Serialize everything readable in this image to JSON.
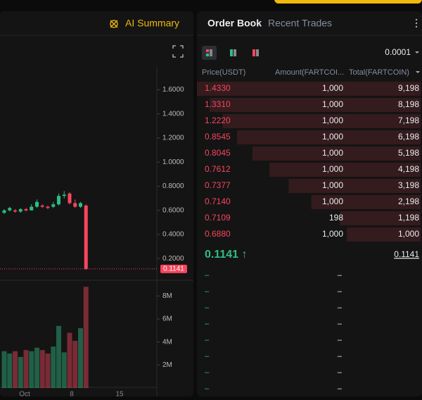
{
  "header": {
    "ai_summary": "AI Summary",
    "tabs": [
      "Order Book",
      "Recent Trades"
    ]
  },
  "chart_data": {
    "type": "candlestick",
    "up_color": "#2ebd85",
    "down_color": "#f6465d",
    "candles": [
      {
        "open": 0.58,
        "high": 0.61,
        "low": 0.57,
        "close": 0.6
      },
      {
        "open": 0.6,
        "high": 0.63,
        "low": 0.59,
        "close": 0.62
      },
      {
        "open": 0.6,
        "high": 0.61,
        "low": 0.58,
        "close": 0.59
      },
      {
        "open": 0.59,
        "high": 0.62,
        "low": 0.58,
        "close": 0.61
      },
      {
        "open": 0.61,
        "high": 0.62,
        "low": 0.59,
        "close": 0.6
      },
      {
        "open": 0.6,
        "high": 0.65,
        "low": 0.6,
        "close": 0.63
      },
      {
        "open": 0.63,
        "high": 0.69,
        "low": 0.62,
        "close": 0.67
      },
      {
        "open": 0.64,
        "high": 0.65,
        "low": 0.62,
        "close": 0.63
      },
      {
        "open": 0.63,
        "high": 0.64,
        "low": 0.61,
        "close": 0.62
      },
      {
        "open": 0.63,
        "high": 0.67,
        "low": 0.62,
        "close": 0.65
      },
      {
        "open": 0.65,
        "high": 0.74,
        "low": 0.64,
        "close": 0.72
      },
      {
        "open": 0.72,
        "high": 0.76,
        "low": 0.7,
        "close": 0.73
      },
      {
        "open": 0.74,
        "high": 0.75,
        "low": 0.65,
        "close": 0.66
      },
      {
        "open": 0.66,
        "high": 0.69,
        "low": 0.62,
        "close": 0.63
      },
      {
        "open": 0.63,
        "high": 0.67,
        "low": 0.62,
        "close": 0.66
      },
      {
        "open": 0.64,
        "high": 0.65,
        "low": 0.107,
        "close": 0.1141
      }
    ],
    "volume": [
      3200000,
      3000000,
      3200000,
      2700000,
      3300000,
      3200000,
      3500000,
      3300000,
      3000000,
      3600000,
      5400000,
      3100000,
      4800000,
      4100000,
      5200000,
      8800000
    ],
    "ylim": [
      0.02,
      1.79
    ],
    "yticks": [
      {
        "value": 1.6,
        "label": "1.6000"
      },
      {
        "value": 1.4,
        "label": "1.4000"
      },
      {
        "value": 1.2,
        "label": "1.2000"
      },
      {
        "value": 1,
        "label": "1.0000"
      },
      {
        "value": 0.8,
        "label": "0.8000"
      },
      {
        "value": 0.6,
        "label": "0.6000"
      },
      {
        "value": 0.4,
        "label": "0.4000"
      },
      {
        "value": 0.2,
        "label": "0.2000"
      }
    ],
    "last_price": {
      "value": 0.1141,
      "label": "0.1141"
    },
    "y2lim": [
      0,
      9240000
    ],
    "y2ticks": [
      {
        "value": 8000000,
        "label": "8M"
      },
      {
        "value": 6000000,
        "label": "6M"
      },
      {
        "value": 4000000,
        "label": "4M"
      },
      {
        "value": 2000000,
        "label": "2M"
      }
    ],
    "xticks": [
      "Oct",
      "8",
      "15"
    ]
  },
  "order_book": {
    "depth": "0.0001",
    "columns": [
      "Price(USDT)",
      "Amount(FARTCOI...",
      "Total(FARTCOIN)"
    ],
    "asks": [
      [
        "1.4330",
        "1,000",
        "9,198"
      ],
      [
        "1.3310",
        "1,000",
        "8,198"
      ],
      [
        "1.2220",
        "1,000",
        "7,198"
      ],
      [
        "0.8545",
        "1,000",
        "6,198"
      ],
      [
        "0.8045",
        "1,000",
        "5,198"
      ],
      [
        "0.7612",
        "1,000",
        "4,198"
      ],
      [
        "0.7377",
        "1,000",
        "3,198"
      ],
      [
        "0.7140",
        "1,000",
        "2,198"
      ],
      [
        "0.7109",
        "198",
        "1,198"
      ],
      [
        "0.6880",
        "1,000",
        "1,000"
      ]
    ],
    "ask_totals": [
      9198,
      8198,
      7198,
      6198,
      5198,
      4198,
      3198,
      2198,
      1198,
      1000
    ],
    "last": "0.1141 ↑",
    "mark": "0.1141",
    "bids": [
      [
        "–",
        "–"
      ],
      [
        "–",
        "–"
      ],
      [
        "–",
        "–"
      ],
      [
        "–",
        "–"
      ],
      [
        "–",
        "–"
      ],
      [
        "–",
        "–"
      ],
      [
        "–",
        "–"
      ],
      [
        "–",
        "–"
      ]
    ]
  }
}
